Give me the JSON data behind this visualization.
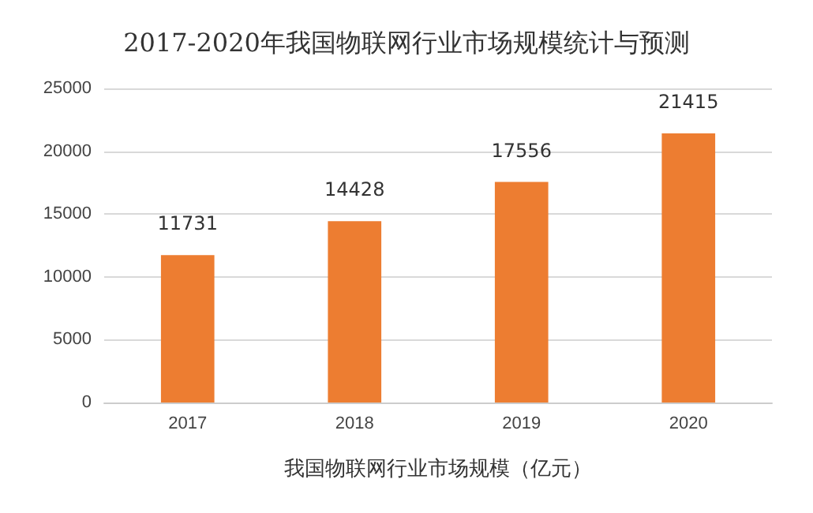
{
  "chart_data": {
    "type": "bar",
    "title": "2017-2020年我国物联网行业市场规模统计与预测",
    "xlabel": "我国物联网行业市场规模（亿元）",
    "categories": [
      "2017",
      "2018",
      "2019",
      "2020"
    ],
    "values": [
      11731,
      14428,
      17556,
      21415
    ],
    "color": "#ed7d31",
    "ylim": [
      0,
      25000
    ],
    "yticks": [
      0,
      5000,
      10000,
      15000,
      20000,
      25000
    ],
    "grid": "y",
    "data_labels": true
  }
}
